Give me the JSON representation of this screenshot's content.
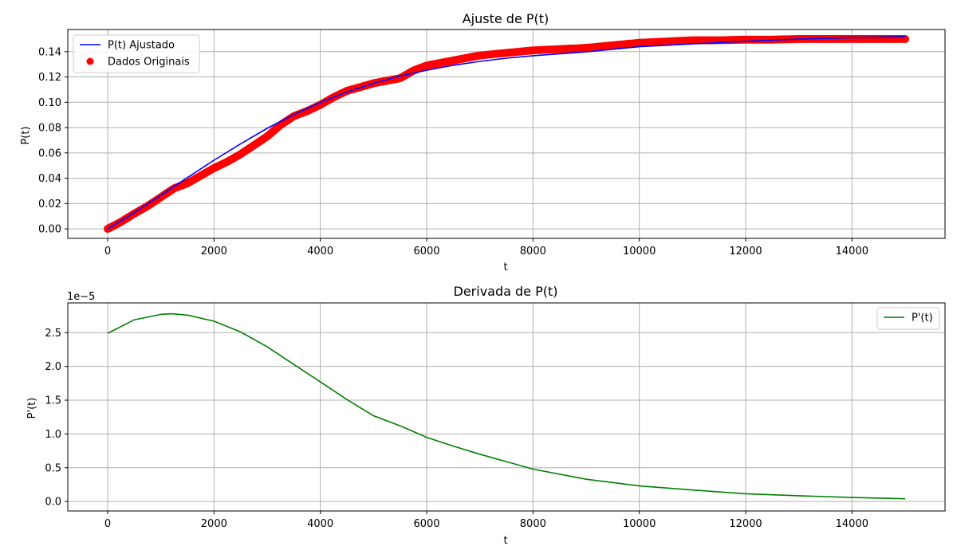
{
  "chart_data": [
    {
      "type": "scatter",
      "title": "Ajuste de P(t)",
      "xlabel": "t",
      "ylabel": "P(t)",
      "xlim": [
        -750,
        15750
      ],
      "ylim": [
        -0.0075,
        0.1575
      ],
      "xticks": [
        0,
        2000,
        4000,
        6000,
        8000,
        10000,
        12000,
        14000
      ],
      "xtick_labels": [
        "0",
        "2000",
        "4000",
        "6000",
        "8000",
        "10000",
        "12000",
        "14000"
      ],
      "yticks": [
        0.0,
        0.02,
        0.04,
        0.06,
        0.08,
        0.1,
        0.12,
        0.14
      ],
      "ytick_labels": [
        "0.00",
        "0.02",
        "0.04",
        "0.06",
        "0.08",
        "0.10",
        "0.12",
        "0.14"
      ],
      "grid": true,
      "legend": "upper-left",
      "series": [
        {
          "name": "P(t) Ajustado",
          "kind": "line",
          "color": "#0000ff",
          "x": [
            0,
            500,
            1000,
            1500,
            2000,
            2500,
            3000,
            3500,
            4000,
            4500,
            5000,
            5500,
            6000,
            6500,
            7000,
            7500,
            8000,
            9000,
            10000,
            11000,
            12000,
            13000,
            14000,
            15000
          ],
          "y": [
            0.0,
            0.0128,
            0.0266,
            0.0405,
            0.0542,
            0.0672,
            0.0794,
            0.0903,
            0.0999,
            0.1081,
            0.115,
            0.1207,
            0.1253,
            0.1292,
            0.1323,
            0.1348,
            0.1368,
            0.1398,
            0.1439,
            0.1461,
            0.1482,
            0.15,
            0.151,
            0.1518
          ]
        },
        {
          "name": "Dados Originais",
          "kind": "scatter",
          "color": "#ff0000",
          "x": [
            0,
            250,
            500,
            750,
            1000,
            1250,
            1500,
            1750,
            2000,
            2250,
            2500,
            2750,
            3000,
            3250,
            3500,
            3750,
            4000,
            4250,
            4500,
            4750,
            5000,
            5250,
            5500,
            5750,
            6000,
            6250,
            6500,
            6750,
            7000,
            7500,
            8000,
            8500,
            9000,
            9500,
            10000,
            10500,
            11000,
            11500,
            12000,
            12500,
            13000,
            13500,
            14000,
            14500,
            15000
          ],
          "y": [
            0.0,
            0.0055,
            0.012,
            0.018,
            0.025,
            0.032,
            0.036,
            0.042,
            0.048,
            0.053,
            0.059,
            0.066,
            0.073,
            0.082,
            0.089,
            0.093,
            0.098,
            0.104,
            0.109,
            0.112,
            0.115,
            0.117,
            0.119,
            0.125,
            0.129,
            0.131,
            0.133,
            0.135,
            0.137,
            0.139,
            0.141,
            0.142,
            0.143,
            0.145,
            0.147,
            0.148,
            0.149,
            0.149,
            0.1495,
            0.1495,
            0.15,
            0.15,
            0.15,
            0.15,
            0.15
          ]
        }
      ]
    },
    {
      "type": "line",
      "title": "Derivada de P(t)",
      "xlabel": "t",
      "ylabel": "P'(t)",
      "scale_label": "1e−5",
      "xlim": [
        -750,
        15750
      ],
      "ylim": [
        -0.14,
        2.94
      ],
      "xticks": [
        0,
        2000,
        4000,
        6000,
        8000,
        10000,
        12000,
        14000
      ],
      "xtick_labels": [
        "0",
        "2000",
        "4000",
        "6000",
        "8000",
        "10000",
        "12000",
        "14000"
      ],
      "yticks": [
        0.0,
        0.5,
        1.0,
        1.5,
        2.0,
        2.5
      ],
      "ytick_labels": [
        "0.0",
        "0.5",
        "1.0",
        "1.5",
        "2.0",
        "2.5"
      ],
      "grid": true,
      "legend": "upper-right",
      "series": [
        {
          "name": "P'(t)",
          "kind": "line",
          "color": "#008000",
          "x": [
            0,
            500,
            1000,
            1200,
            1500,
            2000,
            2500,
            3000,
            3500,
            4000,
            4500,
            5000,
            5500,
            6000,
            6500,
            7000,
            7500,
            8000,
            9000,
            10000,
            11000,
            12000,
            13000,
            14000,
            15000
          ],
          "y": [
            2.49,
            2.69,
            2.77,
            2.78,
            2.76,
            2.67,
            2.51,
            2.29,
            2.03,
            1.77,
            1.51,
            1.27,
            1.12,
            0.95,
            0.82,
            0.7,
            0.59,
            0.48,
            0.33,
            0.23,
            0.17,
            0.115,
            0.085,
            0.06,
            0.04
          ]
        }
      ]
    }
  ]
}
